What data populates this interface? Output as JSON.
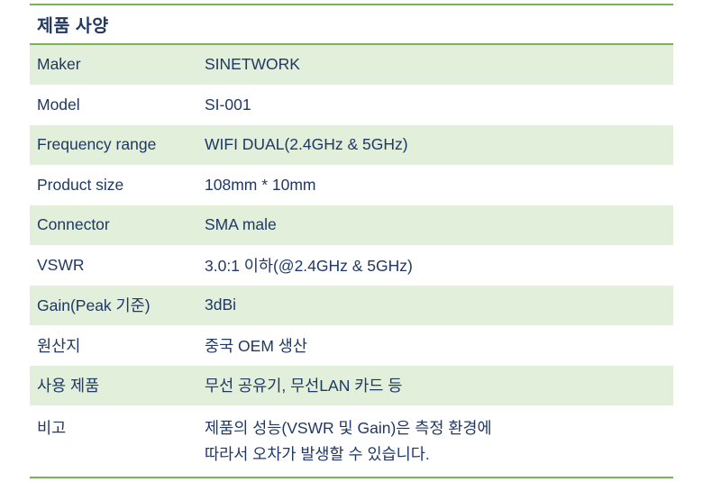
{
  "colors": {
    "accent_green": "#79b352",
    "band_green": "#e2efda",
    "text_navy": "#1f3864"
  },
  "table": {
    "title": "제품 사양",
    "rows": [
      {
        "label": "Maker",
        "value": "SINETWORK"
      },
      {
        "label": "Model",
        "value": "SI-001"
      },
      {
        "label": "Frequency range",
        "value": "WIFI DUAL(2.4GHz & 5GHz)"
      },
      {
        "label": "Product size",
        "value": "108mm * 10mm"
      },
      {
        "label": "Connector",
        "value": "SMA male"
      },
      {
        "label": "VSWR",
        "value": "3.0:1 이하(@2.4GHz & 5GHz)"
      },
      {
        "label": "Gain(Peak 기준)",
        "value": "3dBi"
      },
      {
        "label": "원산지",
        "value": "중국 OEM 생산"
      },
      {
        "label": "사용 제품",
        "value": "무선 공유기, 무선LAN 카드 등"
      },
      {
        "label": "비고",
        "value": "제품의 성능(VSWR 및 Gain)은 측정 환경에\n따라서 오차가 발생할 수 있습니다."
      }
    ]
  }
}
